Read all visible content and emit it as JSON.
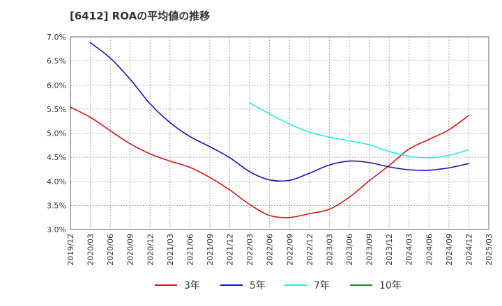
{
  "chart_data": {
    "type": "line",
    "title": "[6412]  ROAの平均値の推移",
    "xlabel": "",
    "ylabel": "",
    "ylim": [
      3.0,
      7.0
    ],
    "y_ticks": [
      "3.0%",
      "3.5%",
      "4.0%",
      "4.5%",
      "5.0%",
      "5.5%",
      "6.0%",
      "6.5%",
      "7.0%"
    ],
    "x_ticks": [
      "2019/12",
      "2020/03",
      "2020/06",
      "2020/09",
      "2020/12",
      "2021/03",
      "2021/06",
      "2021/09",
      "2021/12",
      "2022/03",
      "2022/06",
      "2022/09",
      "2022/12",
      "2023/03",
      "2023/06",
      "2023/09",
      "2023/12",
      "2024/03",
      "2024/06",
      "2024/09",
      "2024/12",
      "2025/03"
    ],
    "grid": true,
    "legend_position": "bottom",
    "series": [
      {
        "name": "3年",
        "color": "#dd1111",
        "x": [
          "2019/12",
          "2020/03",
          "2020/06",
          "2020/09",
          "2020/12",
          "2021/03",
          "2021/06",
          "2021/09",
          "2021/12",
          "2022/03",
          "2022/06",
          "2022/09",
          "2022/12",
          "2023/03",
          "2023/06",
          "2023/09",
          "2023/12",
          "2024/03",
          "2024/06",
          "2024/09",
          "2024/12"
        ],
        "values": [
          5.54,
          5.33,
          5.05,
          4.78,
          4.57,
          4.42,
          4.29,
          4.08,
          3.82,
          3.52,
          3.29,
          3.25,
          3.33,
          3.42,
          3.67,
          4.01,
          4.33,
          4.67,
          4.87,
          5.07,
          5.37
        ]
      },
      {
        "name": "5年",
        "color": "#1111bb",
        "x": [
          "2020/03",
          "2020/06",
          "2020/09",
          "2020/12",
          "2021/03",
          "2021/06",
          "2021/09",
          "2021/12",
          "2022/03",
          "2022/06",
          "2022/09",
          "2022/12",
          "2023/03",
          "2023/06",
          "2023/09",
          "2023/12",
          "2024/03",
          "2024/06",
          "2024/09",
          "2024/12"
        ],
        "values": [
          6.88,
          6.56,
          6.12,
          5.61,
          5.22,
          4.93,
          4.72,
          4.49,
          4.2,
          4.03,
          4.02,
          4.17,
          4.34,
          4.42,
          4.39,
          4.3,
          4.24,
          4.23,
          4.28,
          4.37
        ]
      },
      {
        "name": "7年",
        "color": "#22eeee",
        "x": [
          "2022/03",
          "2022/06",
          "2022/09",
          "2022/12",
          "2023/03",
          "2023/06",
          "2023/09",
          "2023/12",
          "2024/03",
          "2024/06",
          "2024/09",
          "2024/12"
        ],
        "values": [
          5.63,
          5.4,
          5.19,
          5.02,
          4.92,
          4.84,
          4.76,
          4.62,
          4.52,
          4.49,
          4.54,
          4.66
        ]
      },
      {
        "name": "10年",
        "color": "#228822",
        "x": [],
        "values": []
      }
    ]
  }
}
